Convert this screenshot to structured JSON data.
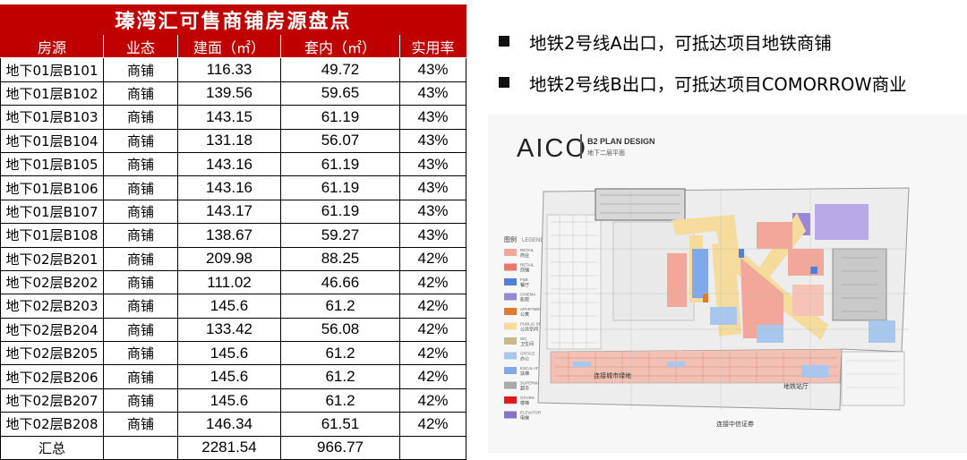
{
  "table": {
    "title": "瑧湾汇可售商铺房源盘点",
    "headers": [
      "房源",
      "业态",
      "建面（㎡）",
      "套内（㎡）",
      "实用率"
    ],
    "rows": [
      [
        "地下01层B101",
        "商铺",
        "116.33",
        "49.72",
        "43%"
      ],
      [
        "地下01层B102",
        "商铺",
        "139.56",
        "59.65",
        "43%"
      ],
      [
        "地下01层B103",
        "商铺",
        "143.15",
        "61.19",
        "43%"
      ],
      [
        "地下01层B104",
        "商铺",
        "131.18",
        "56.07",
        "43%"
      ],
      [
        "地下01层B105",
        "商铺",
        "143.16",
        "61.19",
        "43%"
      ],
      [
        "地下01层B106",
        "商铺",
        "143.16",
        "61.19",
        "43%"
      ],
      [
        "地下01层B107",
        "商铺",
        "143.17",
        "61.19",
        "43%"
      ],
      [
        "地下01层B108",
        "商铺",
        "138.67",
        "59.27",
        "43%"
      ],
      [
        "地下02层B201",
        "商铺",
        "209.98",
        "88.25",
        "42%"
      ],
      [
        "地下02层B202",
        "商铺",
        "111.02",
        "46.66",
        "42%"
      ],
      [
        "地下02层B203",
        "商铺",
        "145.6",
        "61.2",
        "42%"
      ],
      [
        "地下02层B204",
        "商铺",
        "133.42",
        "56.08",
        "42%"
      ],
      [
        "地下02层B205",
        "商铺",
        "145.6",
        "61.2",
        "42%"
      ],
      [
        "地下02层B206",
        "商铺",
        "145.6",
        "61.2",
        "42%"
      ],
      [
        "地下02层B207",
        "商铺",
        "145.6",
        "61.2",
        "42%"
      ],
      [
        "地下02层B208",
        "商铺",
        "146.34",
        "61.51",
        "42%"
      ]
    ],
    "total": {
      "label": "汇总",
      "area": "2281.54",
      "inner": "966.77"
    }
  },
  "bullets": [
    "地铁2号线A出口，可抵达项目地铁商铺",
    "地铁2号线B出口，可抵达项目COMORROW商业"
  ],
  "plan": {
    "logo": "AICO",
    "title_en": "B2 PLAN DESIGN",
    "title_cn": "地下二层平面",
    "legend_title": "图例",
    "legend_title_en": "LEGEND",
    "legend": [
      {
        "en": "RETAIL",
        "cn": "商业",
        "color": "#f2a79a"
      },
      {
        "en": "RETAIL",
        "cn": "商铺",
        "color": "#e8766a"
      },
      {
        "en": "F&B",
        "cn": "餐厅",
        "color": "#4f7fd6"
      },
      {
        "en": "CINEMA",
        "cn": "影院",
        "color": "#9a86d6"
      },
      {
        "en": "APARTMENT",
        "cn": "公寓",
        "color": "#e07a2c"
      },
      {
        "en": "PUBLIC SPACE",
        "cn": "公共空间",
        "color": "#f5dc9c"
      },
      {
        "en": "WC",
        "cn": "卫生间",
        "color": "#c9b98a"
      },
      {
        "en": "OFFICE",
        "cn": "办公",
        "color": "#a7c7ef"
      },
      {
        "en": "ESCALATOR",
        "cn": "扶梯",
        "color": "#7fa9ec"
      },
      {
        "en": "SUPERMARKET",
        "cn": "超市",
        "color": "#a8a8a8"
      },
      {
        "en": "STAIRS",
        "cn": "楼梯",
        "color": "#e31a1c"
      },
      {
        "en": "ELEVATOR",
        "cn": "电梯",
        "color": "#8a70c8"
      }
    ],
    "label_metro": "连接城市绿地",
    "label_south": "连接中信证券",
    "label_center": "地铁站厅"
  }
}
